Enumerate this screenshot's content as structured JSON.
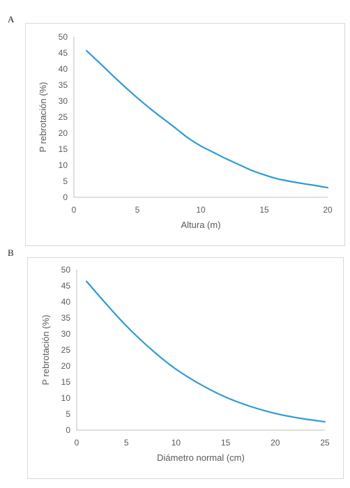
{
  "panels": [
    {
      "letter": "A"
    },
    {
      "letter": "B"
    }
  ],
  "chart_data": [
    {
      "type": "line",
      "title": "",
      "xlabel": "Altura (m)",
      "ylabel": "P rebrotación (%)",
      "xlim": [
        0,
        20
      ],
      "ylim": [
        0,
        50
      ],
      "xticks": [
        0,
        5,
        10,
        15,
        20
      ],
      "yticks": [
        0,
        5,
        10,
        15,
        20,
        25,
        30,
        35,
        40,
        45,
        50
      ],
      "grid": false,
      "line_color": "#2e9bd6",
      "series": [
        {
          "x": [
            1,
            2,
            3,
            4,
            5,
            6,
            7,
            8,
            9,
            10,
            11,
            12,
            13,
            14,
            15,
            16,
            17,
            18,
            19,
            20
          ],
          "values": [
            45.7,
            42.0,
            38.2,
            34.5,
            31.0,
            27.7,
            24.6,
            21.6,
            18.5,
            16.0,
            14.0,
            12.0,
            10.2,
            8.4,
            7.0,
            5.8,
            5.0,
            4.3,
            3.7,
            3.0
          ]
        }
      ]
    },
    {
      "type": "line",
      "title": "",
      "xlabel": "Diámetro normal (cm)",
      "ylabel": "P rebrotación (%)",
      "xlim": [
        0,
        25
      ],
      "ylim": [
        0,
        50
      ],
      "xticks": [
        0,
        5,
        10,
        15,
        20,
        25
      ],
      "yticks": [
        0,
        5,
        10,
        15,
        20,
        25,
        30,
        35,
        40,
        45,
        50
      ],
      "grid": false,
      "line_color": "#2e9bd6",
      "series": [
        {
          "x": [
            1,
            2.5,
            5,
            7.5,
            10,
            12.5,
            15,
            17.5,
            20,
            22.5,
            25
          ],
          "values": [
            46.4,
            41.0,
            32.5,
            25.2,
            19.0,
            14.2,
            10.3,
            7.4,
            5.2,
            3.7,
            2.6
          ]
        }
      ]
    }
  ]
}
